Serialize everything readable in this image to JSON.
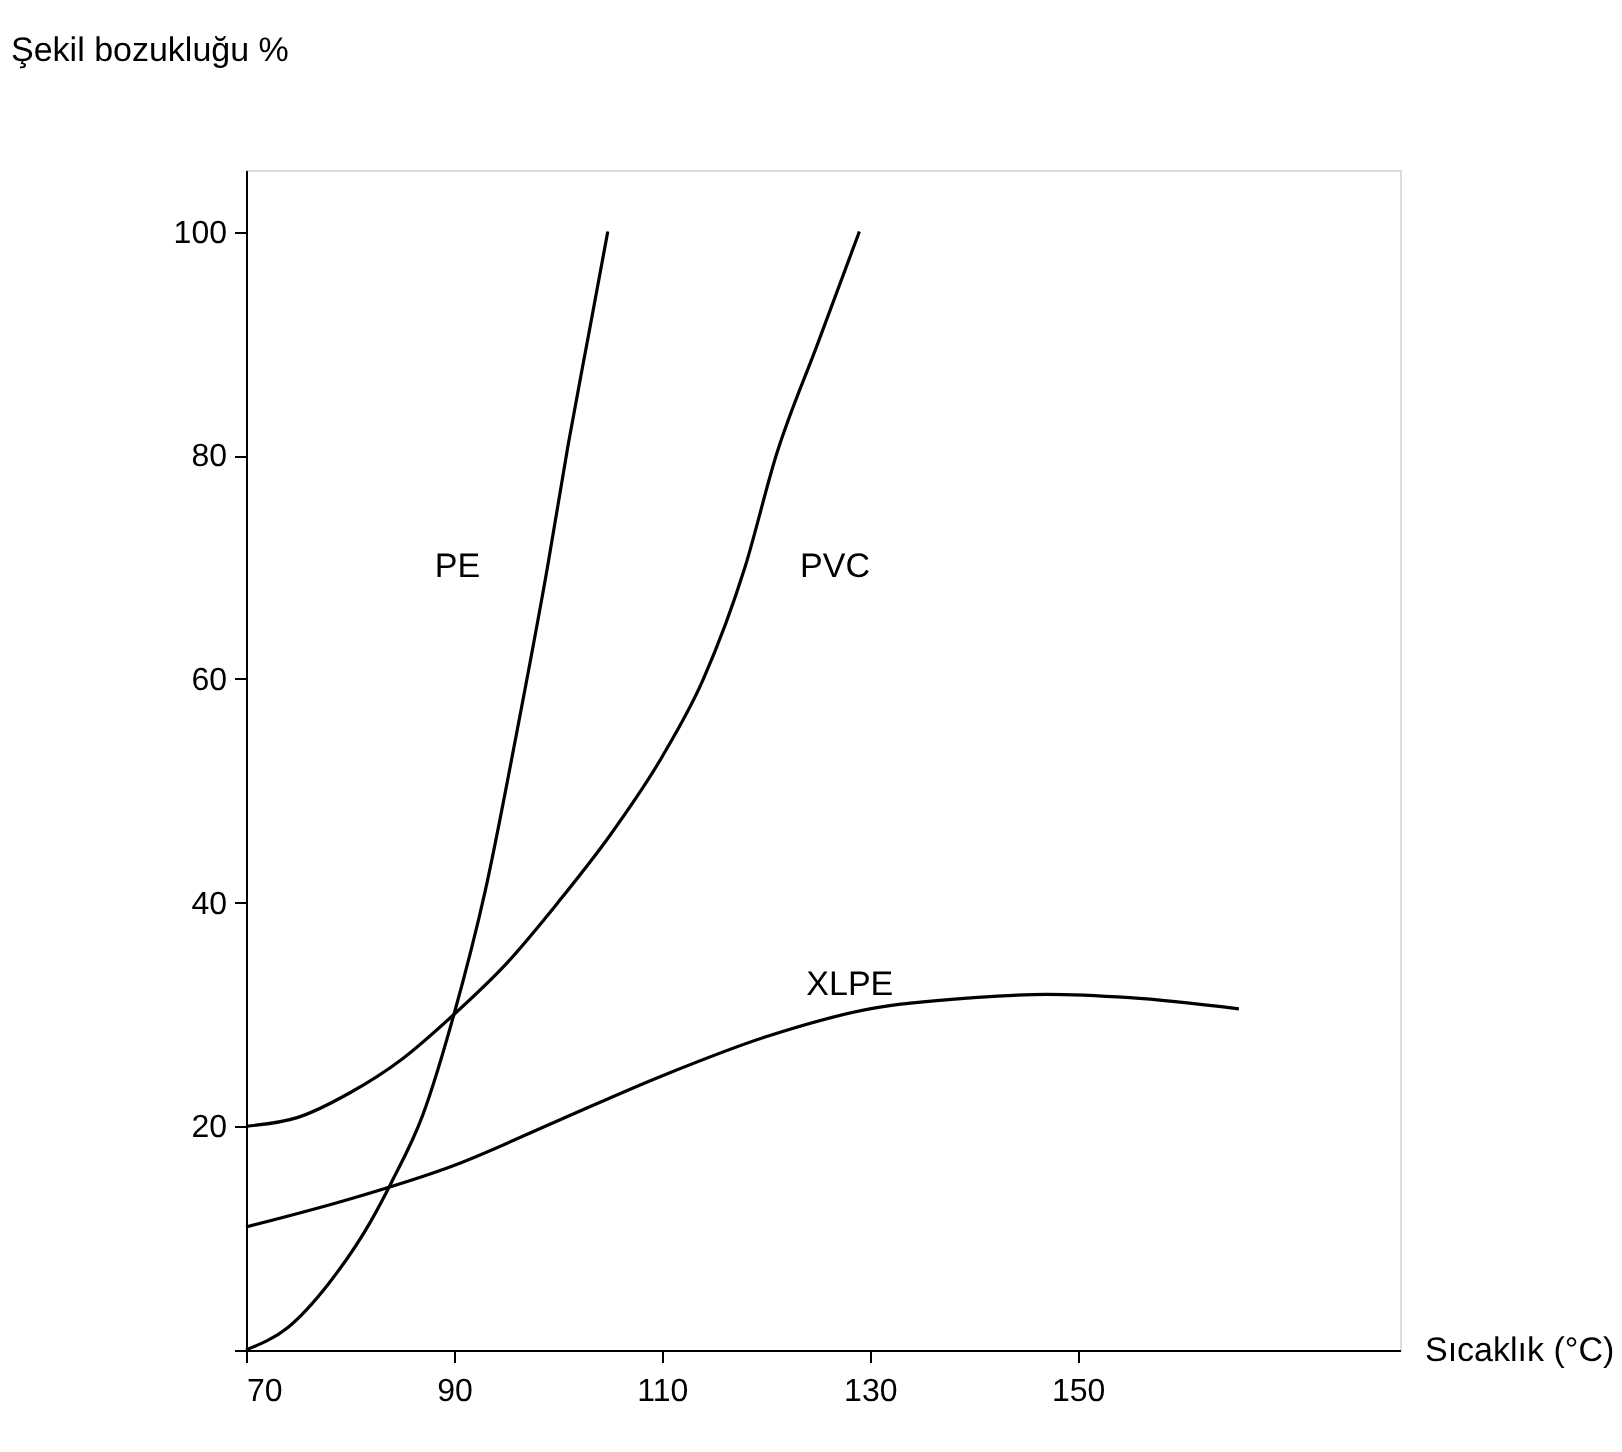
{
  "chart_data": {
    "type": "line",
    "xlabel": "Sıcaklık (°C)",
    "ylabel": "Şekil bozukluğu %",
    "xlim": [
      70,
      181
    ],
    "ylim": [
      0,
      105.5
    ],
    "xticks": [
      70,
      90,
      110,
      130,
      150
    ],
    "yticks": [
      {
        "value": 0,
        "label": null
      },
      20,
      40,
      60,
      80,
      100
    ],
    "grid": false,
    "marker": "none",
    "line_style": "solid",
    "series": [
      {
        "name": "PE",
        "color": "#000000",
        "x": [
          70,
          74,
          78,
          82,
          84,
          87,
          90,
          93,
          96,
          99,
          101,
          103,
          104.8
        ],
        "values": [
          0,
          2,
          6,
          11.5,
          15,
          21,
          30,
          41,
          55,
          70,
          81,
          91,
          100
        ]
      },
      {
        "name": "PVC",
        "color": "#000000",
        "x": [
          70,
          75,
          80,
          85,
          90,
          95,
          100,
          105,
          110,
          114,
          118,
          121,
          125,
          129
        ],
        "values": [
          20,
          20.8,
          23,
          26,
          30,
          34.5,
          40,
          46,
          53,
          60,
          70,
          80,
          90,
          100
        ]
      },
      {
        "name": "XLPE",
        "color": "#000000",
        "x": [
          70,
          80,
          90,
          100,
          110,
          120,
          130,
          140,
          147,
          155,
          165.5
        ],
        "values": [
          11,
          13.5,
          16.5,
          20.5,
          24.5,
          28,
          30.5,
          31.5,
          31.8,
          31.5,
          30.5
        ]
      }
    ]
  }
}
